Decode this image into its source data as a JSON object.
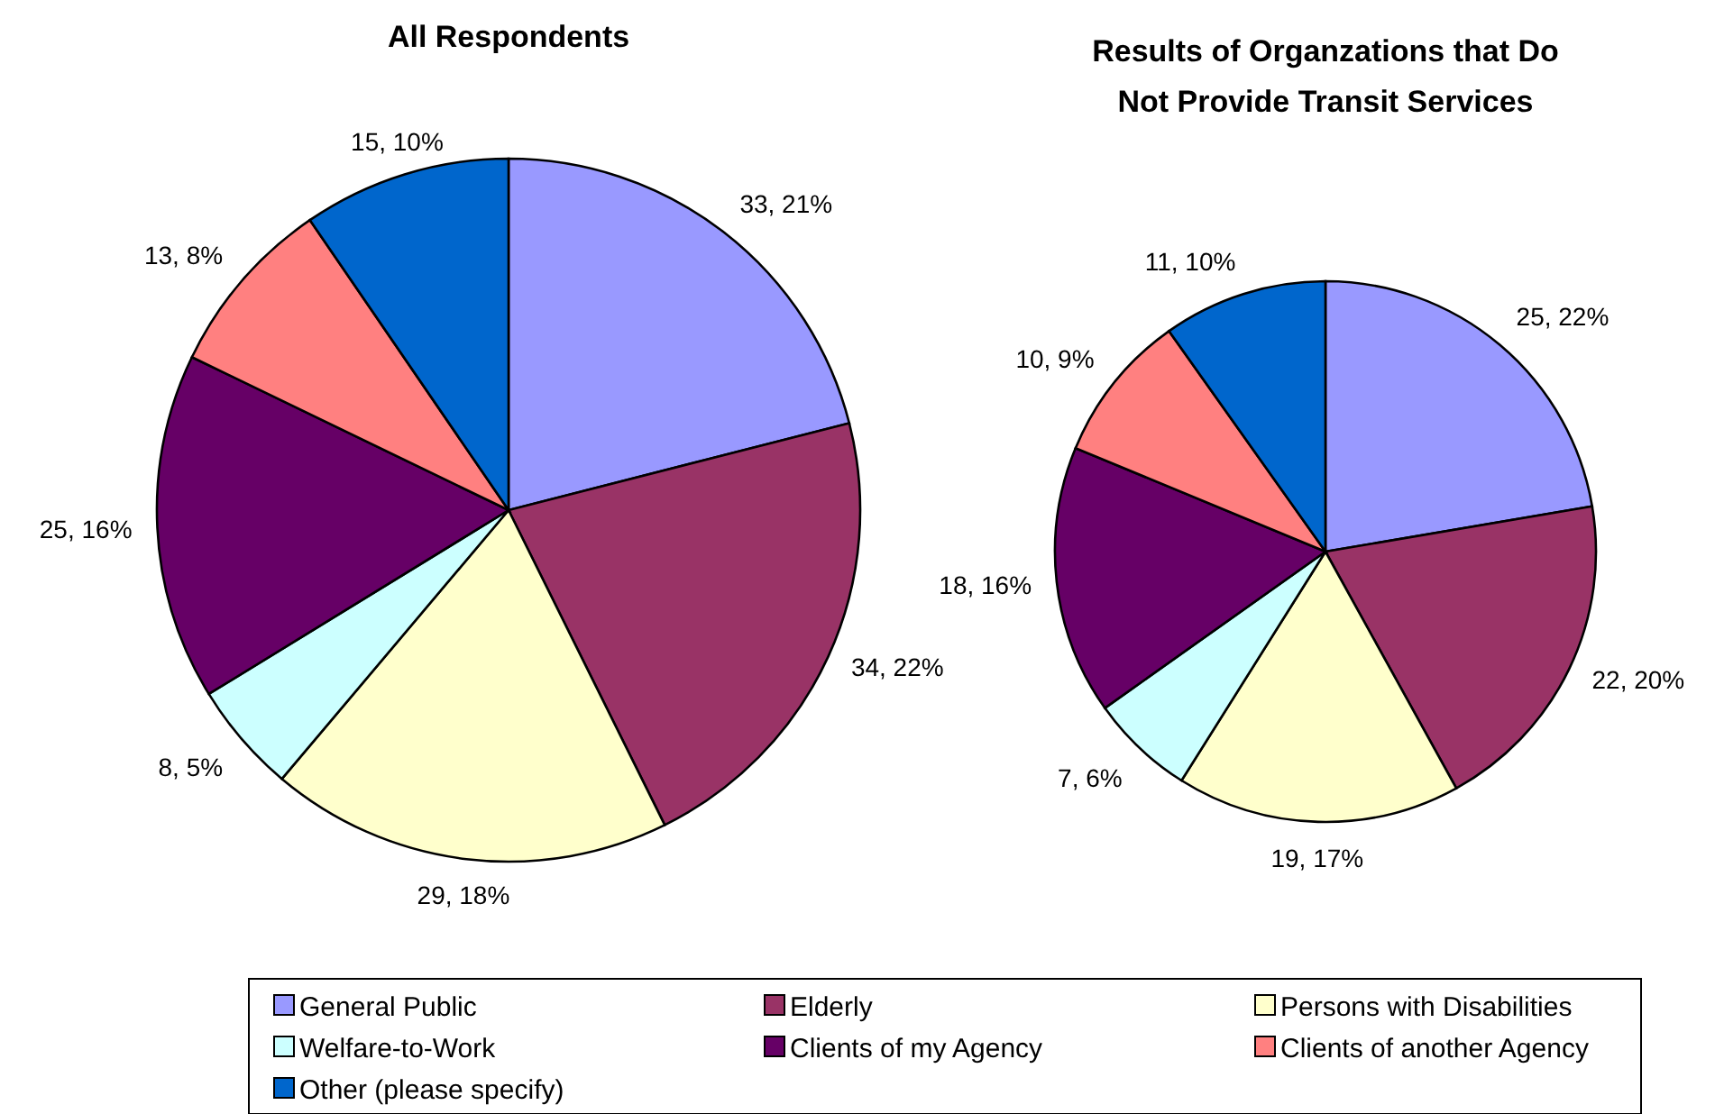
{
  "chart_data": [
    {
      "type": "pie",
      "title": "All Respondents",
      "categories": [
        "General Public",
        "Elderly",
        "Persons with Disabilities",
        "Welfare-to-Work",
        "Clients of my Agency",
        "Clients of another Agency",
        "Other (please specify)"
      ],
      "values": [
        33,
        34,
        29,
        8,
        25,
        13,
        15
      ],
      "colors": [
        "#9999ff",
        "#993366",
        "#ffffcc",
        "#ccffff",
        "#660066",
        "#ff8080",
        "#0066cc"
      ],
      "value_labels": [
        "33, 21%",
        "34, 22%",
        "29, 18%",
        "8, 5%",
        "25, 16%",
        "13, 8%",
        "15, 10%"
      ],
      "legend": "bottom"
    },
    {
      "type": "pie",
      "title": "Results of Organzations that Do Not Provide Transit Services",
      "values": [
        25,
        22,
        19,
        7,
        18,
        10,
        11
      ],
      "colors": [
        "#9999ff",
        "#993366",
        "#ffffcc",
        "#ccffff",
        "#660066",
        "#ff8080",
        "#0066cc"
      ],
      "value_labels": [
        "25, 22%",
        "22, 20%",
        "19, 17%",
        "7, 6%",
        "18, 16%",
        "10, 9%",
        "11, 10%"
      ]
    }
  ]
}
